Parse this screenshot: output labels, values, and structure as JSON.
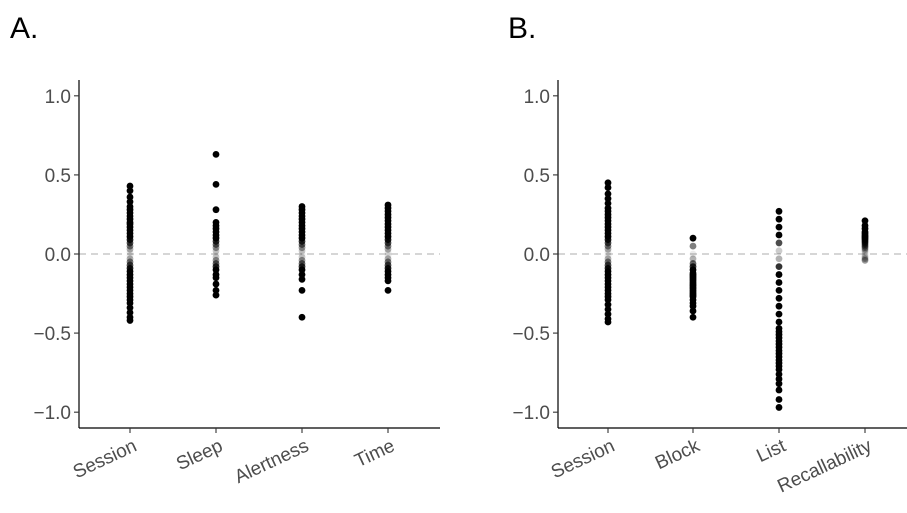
{
  "chart_data": [
    {
      "type": "scatter",
      "panel_label": "A.",
      "ylim": [
        -1.1,
        1.1
      ],
      "yticks": [
        "1.0",
        "0.5",
        "0.0",
        "−0.5",
        "−1.0"
      ],
      "ytick_values": [
        1.0,
        0.5,
        0.0,
        -0.5,
        -1.0
      ],
      "reference_line": 0,
      "categories": [
        "Session",
        "Sleep",
        "Alertness",
        "Time"
      ],
      "series": [
        {
          "category": "Session",
          "values": [
            0.43,
            0.4,
            0.36,
            0.33,
            0.3,
            0.28,
            0.26,
            0.24,
            0.22,
            0.2,
            0.19,
            0.17,
            0.15,
            0.13,
            0.11,
            0.09,
            0.07,
            0.05,
            0.03,
            0.01,
            -0.01,
            -0.03,
            -0.05,
            -0.07,
            -0.09,
            -0.11,
            -0.13,
            -0.15,
            -0.17,
            -0.19,
            -0.21,
            -0.23,
            -0.25,
            -0.27,
            -0.29,
            -0.31,
            -0.34,
            -0.37,
            -0.4,
            -0.42
          ]
        },
        {
          "category": "Sleep",
          "values": [
            0.63,
            0.44,
            0.28,
            0.2,
            0.18,
            0.16,
            0.14,
            0.12,
            0.1,
            0.08,
            0.06,
            0.04,
            0.02,
            0.0,
            -0.02,
            -0.04,
            -0.06,
            -0.08,
            -0.1,
            -0.13,
            -0.15,
            -0.19,
            -0.23,
            -0.26
          ]
        },
        {
          "category": "Alertness",
          "values": [
            0.3,
            0.28,
            0.26,
            0.24,
            0.22,
            0.2,
            0.18,
            0.16,
            0.14,
            0.12,
            0.1,
            0.08,
            0.06,
            0.04,
            0.02,
            0.0,
            -0.02,
            -0.04,
            -0.06,
            -0.08,
            -0.1,
            -0.13,
            -0.16,
            -0.23,
            -0.4
          ]
        },
        {
          "category": "Time",
          "values": [
            0.31,
            0.29,
            0.27,
            0.25,
            0.23,
            0.21,
            0.19,
            0.17,
            0.15,
            0.13,
            0.11,
            0.09,
            0.07,
            0.05,
            0.03,
            0.01,
            -0.01,
            -0.03,
            -0.05,
            -0.07,
            -0.09,
            -0.11,
            -0.13,
            -0.15,
            -0.17,
            -0.23
          ]
        }
      ]
    },
    {
      "type": "scatter",
      "panel_label": "B.",
      "ylim": [
        -1.1,
        1.1
      ],
      "yticks": [
        "1.0",
        "0.5",
        "0.0",
        "−0.5",
        "−1.0"
      ],
      "ytick_values": [
        1.0,
        0.5,
        0.0,
        -0.5,
        -1.0
      ],
      "reference_line": 0,
      "categories": [
        "Session",
        "Block",
        "List",
        "Recallability"
      ],
      "series": [
        {
          "category": "Session",
          "values": [
            0.45,
            0.42,
            0.38,
            0.35,
            0.32,
            0.29,
            0.27,
            0.25,
            0.23,
            0.21,
            0.19,
            0.17,
            0.15,
            0.13,
            0.11,
            0.09,
            0.07,
            0.05,
            0.03,
            0.01,
            -0.01,
            -0.03,
            -0.05,
            -0.07,
            -0.09,
            -0.11,
            -0.13,
            -0.15,
            -0.17,
            -0.19,
            -0.21,
            -0.23,
            -0.25,
            -0.27,
            -0.29,
            -0.32,
            -0.35,
            -0.38,
            -0.41,
            -0.43
          ]
        },
        {
          "category": "Block",
          "values": [
            0.1,
            0.05,
            0.0,
            -0.03,
            -0.06,
            -0.08,
            -0.1,
            -0.12,
            -0.13,
            -0.14,
            -0.15,
            -0.16,
            -0.17,
            -0.18,
            -0.19,
            -0.2,
            -0.21,
            -0.22,
            -0.23,
            -0.24,
            -0.25,
            -0.26,
            -0.27,
            -0.29,
            -0.31,
            -0.33,
            -0.36,
            -0.4
          ]
        },
        {
          "category": "List",
          "values": [
            0.27,
            0.22,
            0.17,
            0.12,
            0.07,
            0.02,
            -0.03,
            -0.08,
            -0.13,
            -0.18,
            -0.23,
            -0.28,
            -0.33,
            -0.38,
            -0.43,
            -0.47,
            -0.49,
            -0.51,
            -0.53,
            -0.55,
            -0.57,
            -0.59,
            -0.61,
            -0.63,
            -0.65,
            -0.67,
            -0.69,
            -0.71,
            -0.73,
            -0.76,
            -0.79,
            -0.82,
            -0.86,
            -0.92,
            -0.97
          ]
        },
        {
          "category": "Recallability",
          "values": [
            0.21,
            0.18,
            0.16,
            0.14,
            0.13,
            0.12,
            0.11,
            0.1,
            0.09,
            0.08,
            0.07,
            0.06,
            0.05,
            0.04,
            0.03,
            0.02,
            0.01,
            0.0,
            -0.01,
            -0.02,
            -0.03,
            -0.04
          ]
        }
      ]
    }
  ]
}
